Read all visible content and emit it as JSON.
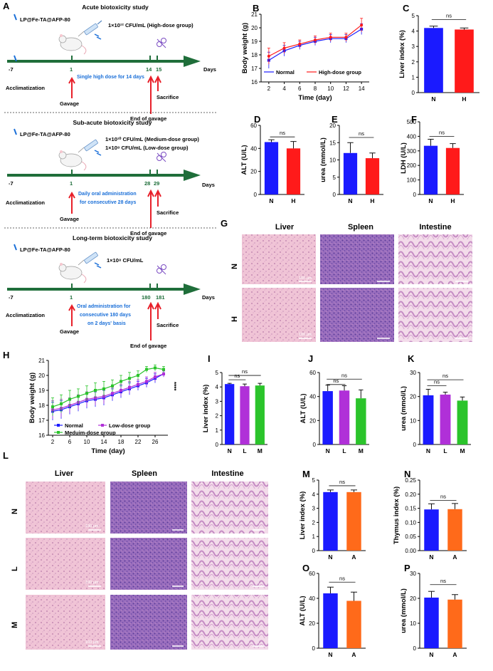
{
  "panels": {
    "A": {
      "label": "A",
      "acute": {
        "title": "Acute biotoxicity study",
        "material": "LP@Fe-TA@AFP-80",
        "dose": "1×10¹² CFU/mL (High-dose group)",
        "note": "Single high dose for 14 days",
        "start": "-7",
        "ticks": [
          "1",
          "14",
          "15"
        ],
        "axis": "Days",
        "acclimatization": "Acclimatization",
        "gavage": "Gavage",
        "end": "End of gavage",
        "sacrifice": "Sacrifice"
      },
      "subacute": {
        "title": "Sub-acute biotoxicity study",
        "material": "LP@Fe-TA@AFP-80",
        "dose1": "1×10¹⁰ CFU/mL (Medium-dose group)",
        "dose2": "1×10⁸ CFU/mL (Low-dose group)",
        "note1": "Daily oral administration",
        "note2": "for consecutive 28 days",
        "start": "-7",
        "ticks": [
          "1",
          "28",
          "29"
        ],
        "axis": "Days",
        "acclimatization": "Acclimatization",
        "gavage": "Gavage",
        "end": "End of gavage",
        "sacrifice": "Sacrifice"
      },
      "longterm": {
        "title": "Long-term biotoxicity study",
        "material": "LP@Fe-TA@AFP-80",
        "dose": "1×10⁸ CFU/mL",
        "note1": "Oral administration for",
        "note2": "consecutive 180 days",
        "note3": "on 2 days' basis",
        "start": "-7",
        "ticks": [
          "1",
          "180",
          "181"
        ],
        "axis": "Days",
        "acclimatization": "Acclimatization",
        "gavage": "Gavage",
        "end": "End of gavage",
        "sacrifice": "Sacrifice"
      }
    },
    "G": {
      "label": "G",
      "columns": [
        "Liver",
        "Spleen",
        "Intestine"
      ],
      "rows": [
        "N",
        "H"
      ],
      "scale": "100 μm"
    },
    "L": {
      "label": "L",
      "columns": [
        "Liver",
        "Spleen",
        "Intestine"
      ],
      "rows": [
        "N",
        "L",
        "M"
      ],
      "scale": "100 μm"
    }
  },
  "colors": {
    "blue": "#1a1aff",
    "red": "#ff1a1a",
    "purple": "#b030d8",
    "green": "#2bc42b",
    "orange": "#ff6a1a",
    "timeline": "#1f6e3a"
  },
  "chart_data": [
    {
      "id": "B",
      "type": "line",
      "xlabel": "Time (day)",
      "ylabel": "Body weight (g)",
      "xlim": [
        1,
        15
      ],
      "ylim": [
        16,
        21
      ],
      "xticks": [
        2,
        4,
        6,
        8,
        10,
        12,
        14
      ],
      "yticks": [
        16,
        17,
        18,
        19,
        20,
        21
      ],
      "x": [
        2,
        4,
        6,
        8,
        10,
        12,
        14
      ],
      "legend": "bottom",
      "series": [
        {
          "name": "Normal",
          "color": "#1a1aff",
          "marker": "square",
          "values": [
            17.6,
            18.3,
            18.7,
            19.0,
            19.2,
            19.2,
            19.9
          ],
          "err": [
            0.6,
            0.4,
            0.3,
            0.3,
            0.3,
            0.3,
            0.4
          ]
        },
        {
          "name": "High-dose group",
          "color": "#ff1a1a",
          "marker": "circle",
          "values": [
            17.9,
            18.5,
            18.8,
            19.1,
            19.3,
            19.3,
            20.2
          ],
          "err": [
            0.6,
            0.4,
            0.3,
            0.3,
            0.3,
            0.3,
            0.5
          ]
        }
      ]
    },
    {
      "id": "C",
      "type": "bar",
      "ylabel": "Liver index (%)",
      "ylim": [
        0,
        5
      ],
      "yticks": [
        0,
        1,
        2,
        3,
        4,
        5
      ],
      "categories": [
        "N",
        "H"
      ],
      "values": [
        4.2,
        4.1
      ],
      "err": [
        0.12,
        0.1
      ],
      "colors": [
        "#1a1aff",
        "#ff1a1a"
      ],
      "sig": [
        {
          "from": 0,
          "to": 1,
          "label": "ns",
          "level": 4.75
        }
      ]
    },
    {
      "id": "D",
      "type": "bar",
      "ylabel": "ALT (U/L)",
      "ylim": [
        0,
        60
      ],
      "yticks": [
        0,
        20,
        40,
        60
      ],
      "categories": [
        "N",
        "H"
      ],
      "values": [
        45.5,
        40.0
      ],
      "err": [
        2,
        6
      ],
      "colors": [
        "#1a1aff",
        "#ff1a1a"
      ],
      "sig": [
        {
          "from": 0,
          "to": 1,
          "label": "ns",
          "level": 50
        }
      ]
    },
    {
      "id": "E",
      "type": "bar",
      "ylabel": "urea (mmol/L)",
      "ylim": [
        0,
        20
      ],
      "yticks": [
        0,
        5,
        10,
        15,
        20
      ],
      "categories": [
        "N",
        "H"
      ],
      "values": [
        12.0,
        10.5
      ],
      "err": [
        3,
        1.5
      ],
      "colors": [
        "#1a1aff",
        "#ff1a1a"
      ],
      "sig": [
        {
          "from": 0,
          "to": 1,
          "label": "ns",
          "level": 16.5
        }
      ]
    },
    {
      "id": "F",
      "type": "bar",
      "ylabel": "LDH (U/L)",
      "ylim": [
        0,
        500
      ],
      "yticks": [
        0,
        100,
        200,
        300,
        400,
        500
      ],
      "categories": [
        "N",
        "H"
      ],
      "values": [
        335,
        320
      ],
      "err": [
        45,
        30
      ],
      "colors": [
        "#1a1aff",
        "#ff1a1a"
      ],
      "sig": [
        {
          "from": 0,
          "to": 1,
          "label": "ns",
          "level": 400
        }
      ]
    },
    {
      "id": "H",
      "type": "line",
      "xlabel": "Time (day)",
      "ylabel": "Body weight (g)",
      "xlim": [
        1,
        29
      ],
      "ylim": [
        16,
        21
      ],
      "xticks": [
        2,
        6,
        10,
        14,
        18,
        22,
        26
      ],
      "yticks": [
        16,
        17,
        18,
        19,
        20,
        21
      ],
      "x": [
        2,
        4,
        6,
        8,
        10,
        12,
        14,
        16,
        18,
        20,
        22,
        24,
        26,
        28
      ],
      "annotation": "****",
      "legend": "bottom-right",
      "series": [
        {
          "name": "Normal",
          "color": "#1a1aff",
          "marker": "square",
          "values": [
            17.6,
            17.7,
            17.9,
            18.1,
            18.3,
            18.4,
            18.5,
            18.7,
            18.9,
            19.1,
            19.3,
            19.5,
            19.8,
            20.1
          ],
          "err": [
            0.6,
            0.6,
            0.5,
            0.5,
            0.5,
            0.5,
            0.5,
            0.4,
            0.4,
            0.4,
            0.3,
            0.3,
            0.3,
            0.2
          ]
        },
        {
          "name": "Low-dose group",
          "color": "#b030d8",
          "marker": "square",
          "values": [
            17.7,
            17.8,
            18.0,
            18.2,
            18.4,
            18.5,
            18.6,
            18.8,
            19.0,
            19.2,
            19.4,
            19.6,
            19.9,
            20.1
          ],
          "err": [
            0.6,
            0.6,
            0.5,
            0.5,
            0.5,
            0.5,
            0.5,
            0.4,
            0.4,
            0.4,
            0.3,
            0.3,
            0.3,
            0.2
          ]
        },
        {
          "name": "Meduim-dose group",
          "color": "#2bc42b",
          "marker": "square",
          "values": [
            17.9,
            18.1,
            18.4,
            18.6,
            18.8,
            19.0,
            19.1,
            19.3,
            19.6,
            19.8,
            20.0,
            20.4,
            20.5,
            20.4
          ],
          "err": [
            0.6,
            0.6,
            0.6,
            0.5,
            0.5,
            0.5,
            0.5,
            0.4,
            0.4,
            0.4,
            0.3,
            0.2,
            0.2,
            0.2
          ]
        }
      ]
    },
    {
      "id": "I",
      "type": "bar",
      "ylabel": "Liver index (%)",
      "ylim": [
        0,
        5
      ],
      "yticks": [
        0,
        1,
        2,
        3,
        4,
        5
      ],
      "categories": [
        "N",
        "L",
        "M"
      ],
      "values": [
        4.2,
        4.05,
        4.1
      ],
      "err": [
        0.05,
        0.15,
        0.15
      ],
      "colors": [
        "#1a1aff",
        "#b030d8",
        "#2bc42b"
      ],
      "sig": [
        {
          "from": 0,
          "to": 1,
          "label": "ns",
          "level": 4.5
        },
        {
          "from": 0,
          "to": 2,
          "label": "ns",
          "level": 4.8
        }
      ]
    },
    {
      "id": "J",
      "type": "bar",
      "ylabel": "ALT (U/L)",
      "ylim": [
        0,
        60
      ],
      "yticks": [
        0,
        20,
        40,
        60
      ],
      "categories": [
        "N",
        "L",
        "M"
      ],
      "values": [
        44.5,
        45.0,
        38.5
      ],
      "err": [
        5,
        4,
        7
      ],
      "colors": [
        "#1a1aff",
        "#b030d8",
        "#2bc42b"
      ],
      "sig": [
        {
          "from": 0,
          "to": 1,
          "label": "ns",
          "level": 50
        },
        {
          "from": 0,
          "to": 2,
          "label": "ns",
          "level": 54.5
        }
      ]
    },
    {
      "id": "K",
      "type": "bar",
      "ylabel": "urea (mmol/L)",
      "ylim": [
        0,
        30
      ],
      "yticks": [
        0,
        10,
        20,
        30
      ],
      "categories": [
        "N",
        "L",
        "M"
      ],
      "values": [
        20.5,
        20.8,
        18.3
      ],
      "err": [
        2.5,
        1,
        1.5
      ],
      "colors": [
        "#1a1aff",
        "#b030d8",
        "#2bc42b"
      ],
      "sig": [
        {
          "from": 0,
          "to": 1,
          "label": "ns",
          "level": 24.5
        },
        {
          "from": 0,
          "to": 2,
          "label": "ns",
          "level": 27
        }
      ]
    },
    {
      "id": "M",
      "type": "bar",
      "ylabel": "Liver index (%)",
      "ylim": [
        0,
        5
      ],
      "yticks": [
        0,
        1,
        2,
        3,
        4,
        5
      ],
      "categories": [
        "N",
        "A"
      ],
      "values": [
        4.15,
        4.15
      ],
      "err": [
        0.15,
        0.15
      ],
      "colors": [
        "#1a1aff",
        "#ff6a1a"
      ],
      "sig": [
        {
          "from": 0,
          "to": 1,
          "label": "ns",
          "level": 4.6
        }
      ]
    },
    {
      "id": "N",
      "type": "bar",
      "ylabel": "Thymus index (%)",
      "ylim": [
        0,
        0.25
      ],
      "yticks": [
        0,
        0.05,
        0.1,
        0.15,
        0.2,
        0.25
      ],
      "ytickLabels": [
        "0.00",
        "0.05",
        "0.10",
        "0.15",
        "0.20",
        "0.25"
      ],
      "categories": [
        "N",
        "A"
      ],
      "values": [
        0.146,
        0.147
      ],
      "err": [
        0.02,
        0.02
      ],
      "colors": [
        "#1a1aff",
        "#ff6a1a"
      ],
      "sig": [
        {
          "from": 0,
          "to": 1,
          "label": "ns",
          "level": 0.178
        }
      ]
    },
    {
      "id": "O",
      "type": "bar",
      "ylabel": "ALT (U/L)",
      "ylim": [
        0,
        60
      ],
      "yticks": [
        0,
        20,
        40,
        60
      ],
      "categories": [
        "N",
        "A"
      ],
      "values": [
        44.0,
        38.0
      ],
      "err": [
        5,
        7
      ],
      "colors": [
        "#1a1aff",
        "#ff6a1a"
      ],
      "sig": [
        {
          "from": 0,
          "to": 1,
          "label": "ns",
          "level": 53
        }
      ]
    },
    {
      "id": "P",
      "type": "bar",
      "ylabel": "urea (mmol/L)",
      "ylim": [
        0,
        30
      ],
      "yticks": [
        0,
        10,
        20,
        30
      ],
      "categories": [
        "N",
        "A"
      ],
      "values": [
        20.3,
        19.5
      ],
      "err": [
        2.5,
        2
      ],
      "colors": [
        "#1a1aff",
        "#ff6a1a"
      ],
      "sig": [
        {
          "from": 0,
          "to": 1,
          "label": "ns",
          "level": 25.5
        }
      ]
    }
  ]
}
